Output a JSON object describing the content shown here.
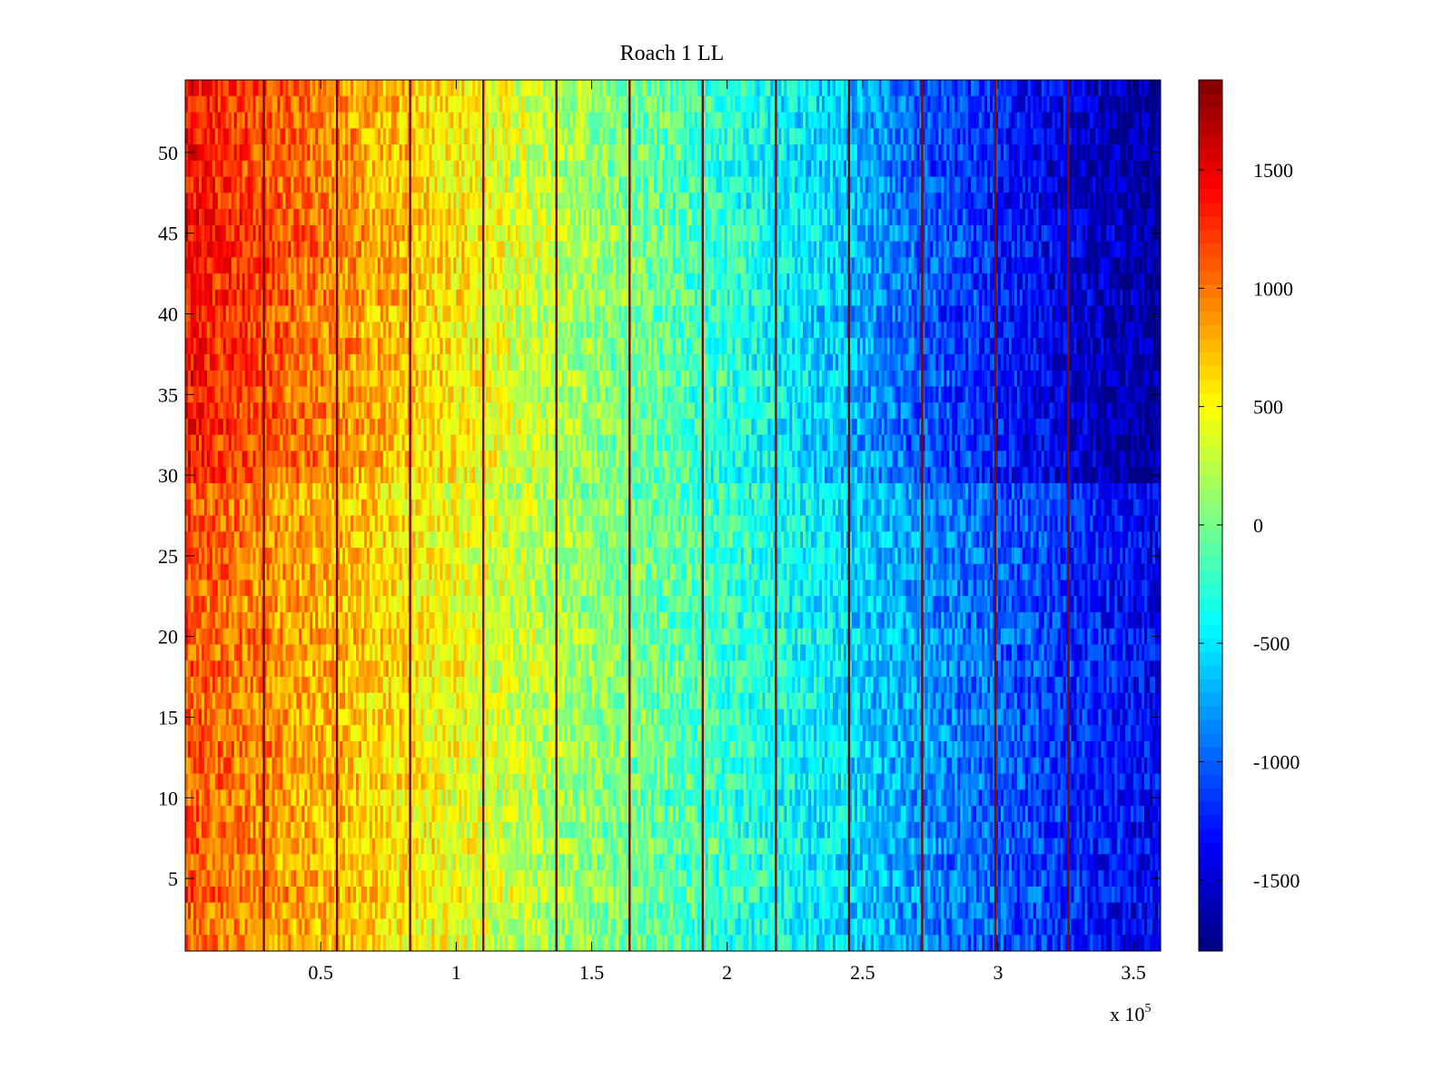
{
  "chart_data": {
    "type": "heatmap",
    "title": "Roach 1 LL",
    "xlabel": "",
    "ylabel": "",
    "xlim": [
      0,
      360000
    ],
    "ylim": [
      0.5,
      54.5
    ],
    "x_ticks": [
      50000,
      100000,
      150000,
      200000,
      250000,
      300000,
      350000
    ],
    "x_tick_labels": [
      "0.5",
      "1",
      "1.5",
      "2",
      "2.5",
      "3",
      "3.5"
    ],
    "x_exponent_label": "x 10",
    "x_exponent_power": "5",
    "y_ticks": [
      5,
      10,
      15,
      20,
      25,
      30,
      35,
      40,
      45,
      50
    ],
    "y_tick_labels": [
      "5",
      "10",
      "15",
      "20",
      "25",
      "30",
      "35",
      "40",
      "45",
      "50"
    ],
    "colorbar": {
      "colormap": "jet",
      "clim": [
        -1800,
        1880
      ],
      "ticks": [
        1500,
        1000,
        500,
        0,
        -500,
        -1000,
        -1500
      ],
      "tick_labels": [
        "1500",
        "1000",
        "500",
        "0",
        "-500",
        "-1000",
        "-1500"
      ]
    },
    "rows": 54,
    "trend": {
      "description_values_left_to_right": [
        1100,
        900,
        700,
        500,
        300,
        100,
        -100,
        -300,
        -500,
        -800,
        -1000,
        -1200,
        -1400
      ]
    },
    "vertical_bands_x": [
      29000,
      56000,
      83000,
      110000,
      137000,
      164000,
      191000,
      218000,
      245000,
      272000,
      299000,
      326000
    ],
    "grid": false
  }
}
